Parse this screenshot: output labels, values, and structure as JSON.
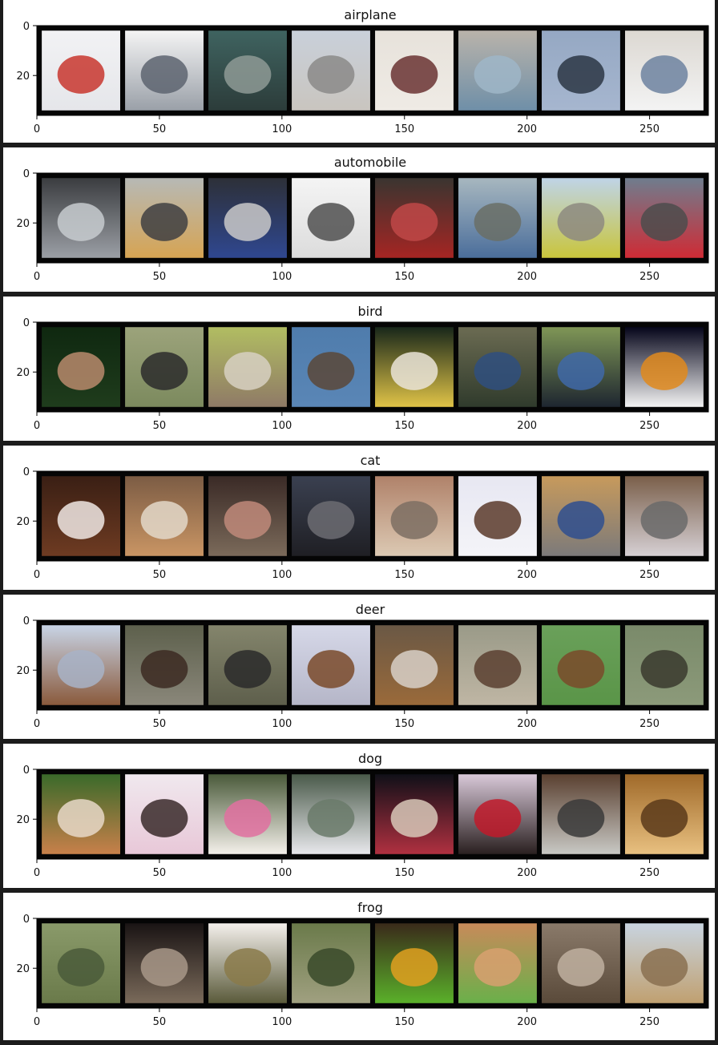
{
  "chart_data": [
    {
      "type": "image-grid",
      "title": "airplane",
      "x_ticks": [
        0,
        50,
        100,
        150,
        200,
        250
      ],
      "y_ticks": [
        0,
        20
      ],
      "xlim": [
        0,
        274
      ],
      "ylim": [
        36,
        0
      ],
      "tiles": [
        {
          "icon": "airplane-jet-white-red-tail",
          "colors": [
            "#f2f2f4",
            "#e5e6ea",
            "#c8362e"
          ]
        },
        {
          "icon": "fighter-jet-grey",
          "colors": [
            "#f4f4f4",
            "#9aa0a8",
            "#5d6470"
          ]
        },
        {
          "icon": "stealth-jet-dark",
          "colors": [
            "#3f6360",
            "#2c3c3a",
            "#8e9a95"
          ]
        },
        {
          "icon": "airliner-on-runway",
          "colors": [
            "#c9d0da",
            "#c9c5bf",
            "#8b8a88"
          ]
        },
        {
          "icon": "airliner-banking",
          "colors": [
            "#e7e2db",
            "#efebe5",
            "#6a3333"
          ]
        },
        {
          "icon": "jet-wing-closeup",
          "colors": [
            "#b9b3aa",
            "#6f8fa8",
            "#9fb6c8"
          ]
        },
        {
          "icon": "stealth-bomber-sky",
          "colors": [
            "#95a8c3",
            "#a6b6cf",
            "#2c3644"
          ]
        },
        {
          "icon": "airliner-nose",
          "colors": [
            "#dcd8d2",
            "#f3f3f3",
            "#6d83a0"
          ]
        }
      ]
    },
    {
      "type": "image-grid",
      "title": "automobile",
      "x_ticks": [
        0,
        50,
        100,
        150,
        200,
        250
      ],
      "y_ticks": [
        0,
        20
      ],
      "xlim": [
        0,
        274
      ],
      "ylim": [
        36,
        0
      ],
      "tiles": [
        {
          "icon": "silver-sports-car",
          "colors": [
            "#3b3d40",
            "#9b9fa5",
            "#c7cbcf"
          ]
        },
        {
          "icon": "yellow-taxi",
          "colors": [
            "#b7b9b5",
            "#d6a453",
            "#3f4042"
          ]
        },
        {
          "icon": "blue-sedan",
          "colors": [
            "#2d3038",
            "#2f4790",
            "#c9c9c9"
          ]
        },
        {
          "icon": "white-suv",
          "colors": [
            "#f4f4f4",
            "#dcdcdc",
            "#505050"
          ]
        },
        {
          "icon": "red-beetle",
          "colors": [
            "#3a3530",
            "#a52523",
            "#c04848"
          ]
        },
        {
          "icon": "grey-sedan-street",
          "colors": [
            "#a7b7bf",
            "#4b6e9b",
            "#6a6f66"
          ]
        },
        {
          "icon": "car-in-field",
          "colors": [
            "#bfd4e7",
            "#c9c53c",
            "#8d8a80"
          ]
        },
        {
          "icon": "red-wagon",
          "colors": [
            "#6f7d8e",
            "#cf2b35",
            "#4c4c4c"
          ]
        }
      ]
    },
    {
      "type": "image-grid",
      "title": "bird",
      "x_ticks": [
        0,
        50,
        100,
        150,
        200,
        250
      ],
      "y_ticks": [
        0,
        20
      ],
      "xlim": [
        0,
        274
      ],
      "ylim": [
        36,
        0
      ],
      "tiles": [
        {
          "icon": "hummingbird-dark",
          "colors": [
            "#0f2810",
            "#1f3c1c",
            "#b98a6c"
          ]
        },
        {
          "icon": "ostrich-grass",
          "colors": [
            "#9ca37b",
            "#7c8a5e",
            "#2b2b2b"
          ]
        },
        {
          "icon": "bird-on-post",
          "colors": [
            "#b1bd62",
            "#8f7a66",
            "#d7d0c2"
          ]
        },
        {
          "icon": "bird-blue-sky",
          "colors": [
            "#4f7cac",
            "#5a86b6",
            "#5b4838"
          ]
        },
        {
          "icon": "yellow-bird-perched",
          "colors": [
            "#18271a",
            "#e0c347",
            "#eae4d8"
          ]
        },
        {
          "icon": "cassowary-foliage",
          "colors": [
            "#6b6b52",
            "#303b2c",
            "#2f4f7f"
          ]
        },
        {
          "icon": "cassowary-blue-neck",
          "colors": [
            "#7f9656",
            "#1e2630",
            "#4068a8"
          ]
        },
        {
          "icon": "white-swan-dark",
          "colors": [
            "#05051a",
            "#f3f3f3",
            "#e08a1d"
          ]
        }
      ]
    },
    {
      "type": "image-grid",
      "title": "cat",
      "x_ticks": [
        0,
        50,
        100,
        150,
        200,
        250
      ],
      "y_ticks": [
        0,
        20
      ],
      "xlim": [
        0,
        274
      ],
      "ylim": [
        36,
        0
      ],
      "tiles": [
        {
          "icon": "brown-cat-closeup",
          "colors": [
            "#3a1f14",
            "#6e3b22",
            "#f0e8e4"
          ]
        },
        {
          "icon": "tabby-cat-box",
          "colors": [
            "#7c5c44",
            "#c99564",
            "#e3d8c9"
          ]
        },
        {
          "icon": "cat-held-arm",
          "colors": [
            "#3a2a26",
            "#7b6a5a",
            "#c08a7a"
          ]
        },
        {
          "icon": "black-cat-face",
          "colors": [
            "#3a4050",
            "#1f1f24",
            "#6c6c72"
          ]
        },
        {
          "icon": "cat-cream-blur",
          "colors": [
            "#b0826a",
            "#dcc9b3",
            "#7d6e63"
          ]
        },
        {
          "icon": "kitten-white-blanket",
          "colors": [
            "#e7e7f2",
            "#f4f4f8",
            "#5a3a2a"
          ]
        },
        {
          "icon": "cat-sleeping-blue",
          "colors": [
            "#c79a5c",
            "#7c7a7a",
            "#2f4f8f"
          ]
        },
        {
          "icon": "cat-on-bed",
          "colors": [
            "#7a5f4a",
            "#d6d0d4",
            "#6a6a6a"
          ]
        }
      ]
    },
    {
      "type": "image-grid",
      "title": "deer",
      "x_ticks": [
        0,
        50,
        100,
        150,
        200,
        250
      ],
      "y_ticks": [
        0,
        20
      ],
      "xlim": [
        0,
        274
      ],
      "ylim": [
        36,
        0
      ],
      "tiles": [
        {
          "icon": "deer-standing-pale",
          "colors": [
            "#c8d4e6",
            "#8a5a3c",
            "#a8b3c7"
          ]
        },
        {
          "icon": "elk-forest",
          "colors": [
            "#5d604c",
            "#8a877a",
            "#3c2a22"
          ]
        },
        {
          "icon": "deer-grazing",
          "colors": [
            "#84856c",
            "#5e5f4c",
            "#2a2a2a"
          ]
        },
        {
          "icon": "deer-snow",
          "colors": [
            "#d6d8e8",
            "#b5b6c8",
            "#7a4a2a"
          ]
        },
        {
          "icon": "deer-face-closeup",
          "colors": [
            "#6a5845",
            "#9a6a3a",
            "#d8d0c8"
          ]
        },
        {
          "icon": "deer-dry-grass",
          "colors": [
            "#9a9a88",
            "#bfb6a4",
            "#5a4030"
          ]
        },
        {
          "icon": "deer-green-field",
          "colors": [
            "#6aa05a",
            "#5a9548",
            "#7a4a2a"
          ]
        },
        {
          "icon": "reindeer-green",
          "colors": [
            "#7a8a6a",
            "#8c9a7a",
            "#3a3a2e"
          ]
        }
      ]
    },
    {
      "type": "image-grid",
      "title": "dog",
      "x_ticks": [
        0,
        50,
        100,
        150,
        200,
        250
      ],
      "y_ticks": [
        0,
        20
      ],
      "xlim": [
        0,
        274
      ],
      "ylim": [
        36,
        0
      ],
      "tiles": [
        {
          "icon": "pomeranian-grass",
          "colors": [
            "#3a6a2a",
            "#c8804a",
            "#e8d8c8"
          ]
        },
        {
          "icon": "white-shih-tzu",
          "colors": [
            "#f0e8ee",
            "#e8c8d8",
            "#3a2a2a"
          ]
        },
        {
          "icon": "white-puppy-pink-toy",
          "colors": [
            "#4a5a3a",
            "#f4f0ea",
            "#e070a0"
          ]
        },
        {
          "icon": "white-dog-sitting",
          "colors": [
            "#4a5a4a",
            "#e8e8ec",
            "#6a7a6a"
          ]
        },
        {
          "icon": "small-dog-blanket",
          "colors": [
            "#101018",
            "#b03040",
            "#d8c8b8"
          ]
        },
        {
          "icon": "chihuahua-red-flower",
          "colors": [
            "#d8c8d8",
            "#2a2020",
            "#c01a2a"
          ]
        },
        {
          "icon": "grey-terrier",
          "colors": [
            "#5a4030",
            "#c8c8c4",
            "#3a3a3a"
          ]
        },
        {
          "icon": "golden-puppy",
          "colors": [
            "#a06a2a",
            "#e8c080",
            "#5a3a1a"
          ]
        }
      ]
    },
    {
      "type": "image-grid",
      "title": "frog",
      "x_ticks": [
        0,
        50,
        100,
        150,
        200,
        250
      ],
      "y_ticks": [
        0,
        20
      ],
      "xlim": [
        0,
        274
      ],
      "ylim": [
        36,
        0
      ],
      "tiles": [
        {
          "icon": "green-frog-rock",
          "colors": [
            "#8a9a6a",
            "#6a7a4a",
            "#4a5a3a"
          ]
        },
        {
          "icon": "toad-dark",
          "colors": [
            "#1a1414",
            "#7a6a5a",
            "#a89888"
          ]
        },
        {
          "icon": "frog-white-bg",
          "colors": [
            "#f4f0ec",
            "#5a5a3a",
            "#8a7a4a"
          ]
        },
        {
          "icon": "frog-camouflage",
          "colors": [
            "#6a7a4a",
            "#a0a080",
            "#3a4a2a"
          ]
        },
        {
          "icon": "tree-frog-bright",
          "colors": [
            "#3a2a1a",
            "#5ab02a",
            "#e0a020"
          ]
        },
        {
          "icon": "green-frog-orange-rock",
          "colors": [
            "#c88a5a",
            "#6ab04a",
            "#d8a070"
          ]
        },
        {
          "icon": "brown-frog-pebbles",
          "colors": [
            "#8a7a6a",
            "#5a4a3a",
            "#c0b0a0"
          ]
        },
        {
          "icon": "toad-pale-blue",
          "colors": [
            "#c8d4e0",
            "#c0a070",
            "#8a7050"
          ]
        }
      ]
    }
  ]
}
